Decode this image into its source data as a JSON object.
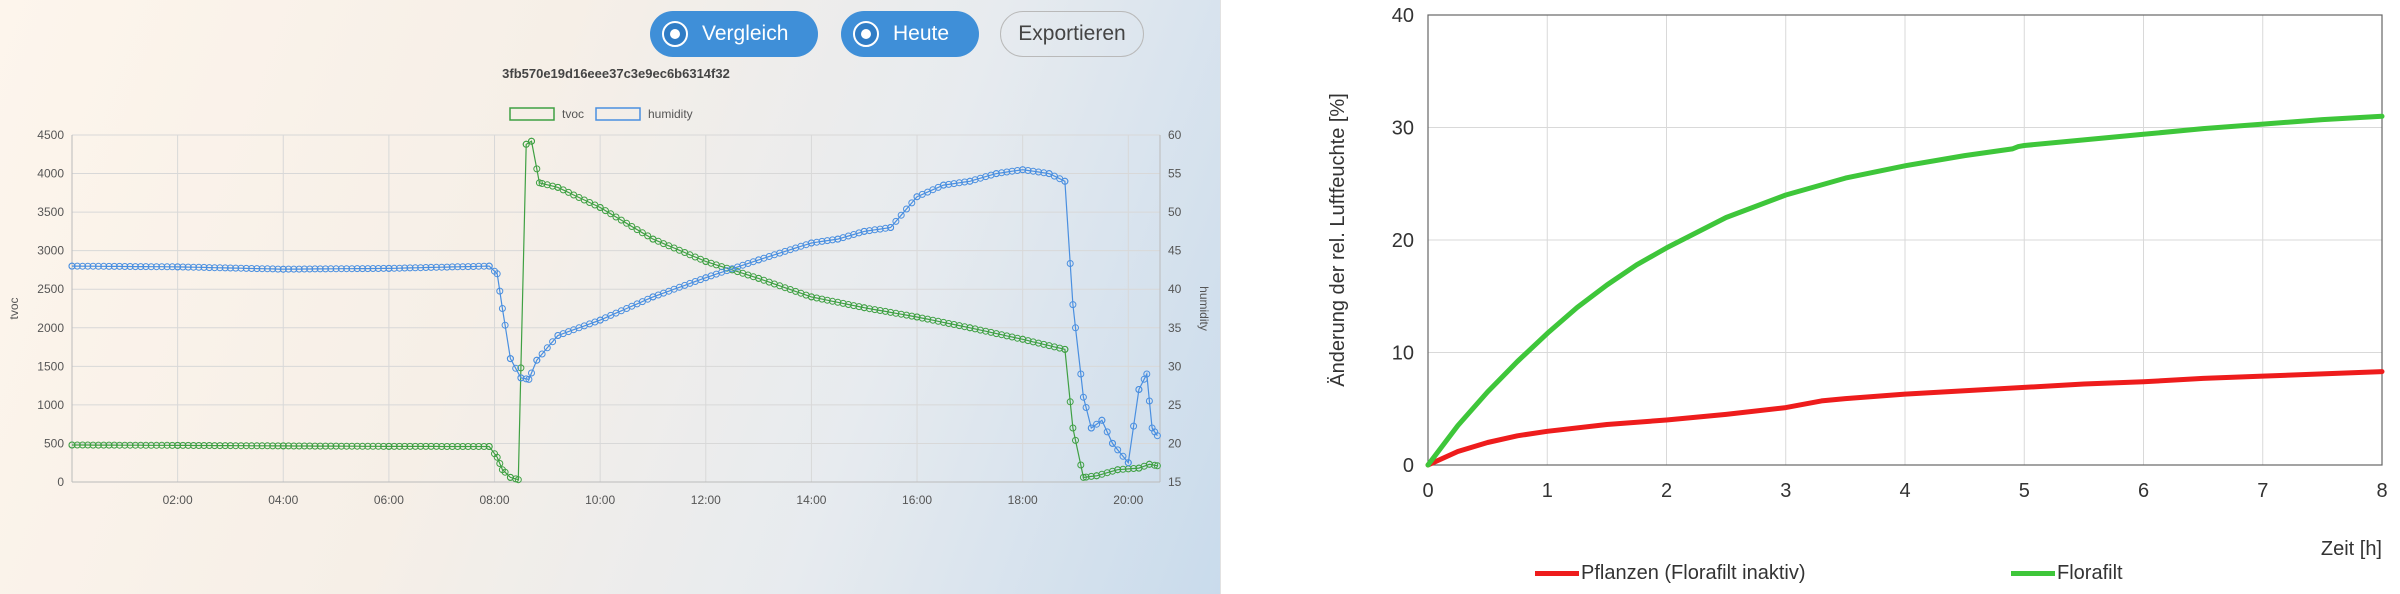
{
  "toolbar": {
    "compare_label": "Vergleich",
    "today_label": "Heute",
    "export_label": "Exportieren"
  },
  "colors": {
    "button_primary": "#3f8fd8",
    "tvoc": "#3fa043",
    "humidity": "#4a8fe0",
    "plants": "#ee1c1c",
    "florafilt": "#3ec63a"
  },
  "chart_data": [
    {
      "type": "line",
      "title": "3fb570e19d16eee37c3e9ec6b6314f32",
      "xlabel": "",
      "x_ticks": [
        "02:00",
        "04:00",
        "06:00",
        "08:00",
        "10:00",
        "12:00",
        "14:00",
        "16:00",
        "18:00",
        "20:00"
      ],
      "x_range_hours": [
        0,
        20.6
      ],
      "y_left": {
        "label": "tvoc",
        "range": [
          0,
          4500
        ],
        "ticks": [
          0,
          500,
          1000,
          1500,
          2000,
          2500,
          3000,
          3500,
          4000,
          4500
        ]
      },
      "y_right": {
        "label": "humidity",
        "range": [
          15,
          60
        ],
        "ticks": [
          15,
          20,
          25,
          30,
          35,
          40,
          45,
          50,
          55,
          60
        ]
      },
      "grid": true,
      "legend_position": "top-center",
      "series": [
        {
          "name": "tvoc",
          "axis": "left",
          "color": "#3fa043",
          "points": [
            [
              0,
              480
            ],
            [
              2,
              475
            ],
            [
              4,
              468
            ],
            [
              6,
              462
            ],
            [
              7.9,
              460
            ],
            [
              8.05,
              320
            ],
            [
              8.15,
              160
            ],
            [
              8.3,
              60
            ],
            [
              8.45,
              30
            ],
            [
              8.6,
              4380
            ],
            [
              8.7,
              4420
            ],
            [
              8.85,
              3880
            ],
            [
              9.2,
              3820
            ],
            [
              10,
              3560
            ],
            [
              11,
              3150
            ],
            [
              12,
              2860
            ],
            [
              13,
              2640
            ],
            [
              14,
              2400
            ],
            [
              15,
              2260
            ],
            [
              16,
              2140
            ],
            [
              17,
              2000
            ],
            [
              18,
              1850
            ],
            [
              18.8,
              1720
            ],
            [
              18.95,
              700
            ],
            [
              19.15,
              60
            ],
            [
              19.4,
              80
            ],
            [
              19.8,
              160
            ],
            [
              20.2,
              180
            ],
            [
              20.4,
              230
            ],
            [
              20.55,
              210
            ]
          ]
        },
        {
          "name": "humidity",
          "axis": "right",
          "color": "#4a8fe0",
          "points": [
            [
              0,
              43
            ],
            [
              2,
              42.9
            ],
            [
              4,
              42.6
            ],
            [
              6,
              42.7
            ],
            [
              7.9,
              43
            ],
            [
              8.05,
              42
            ],
            [
              8.15,
              37.5
            ],
            [
              8.3,
              31
            ],
            [
              8.5,
              28.5
            ],
            [
              8.65,
              28.3
            ],
            [
              8.8,
              30.8
            ],
            [
              9.2,
              34
            ],
            [
              10,
              36
            ],
            [
              11,
              39
            ],
            [
              12,
              41.5
            ],
            [
              13,
              43.8
            ],
            [
              14,
              46
            ],
            [
              14.5,
              46.5
            ],
            [
              15,
              47.5
            ],
            [
              15.5,
              48
            ],
            [
              16,
              52
            ],
            [
              16.5,
              53.5
            ],
            [
              17,
              54
            ],
            [
              17.5,
              55
            ],
            [
              18,
              55.5
            ],
            [
              18.5,
              55
            ],
            [
              18.8,
              54
            ],
            [
              18.95,
              38
            ],
            [
              19.15,
              26
            ],
            [
              19.3,
              22
            ],
            [
              19.5,
              23
            ],
            [
              19.7,
              20
            ],
            [
              20.0,
              17.5
            ],
            [
              20.2,
              27
            ],
            [
              20.35,
              29
            ],
            [
              20.45,
              22
            ],
            [
              20.55,
              21
            ]
          ]
        }
      ]
    },
    {
      "type": "line",
      "xlabel": "Zeit [h]",
      "ylabel": "Änderung der rel. Luftfeuchte [%]",
      "xlim": [
        0,
        8
      ],
      "ylim": [
        0,
        40
      ],
      "x_ticks": [
        0,
        1,
        2,
        3,
        4,
        5,
        6,
        7,
        8
      ],
      "y_ticks": [
        0,
        10,
        20,
        30,
        40
      ],
      "grid": true,
      "legend_position": "bottom",
      "series": [
        {
          "name": "Pflanzen (Florafilt inaktiv)",
          "color": "#ee1c1c",
          "x": [
            0,
            0.25,
            0.5,
            0.75,
            1,
            1.5,
            2,
            2.5,
            3,
            3.3,
            3.5,
            4,
            4.5,
            5,
            5.5,
            6,
            6.5,
            7,
            7.5,
            8
          ],
          "y": [
            0,
            1.2,
            2.0,
            2.6,
            3.0,
            3.6,
            4.0,
            4.5,
            5.1,
            5.7,
            5.9,
            6.3,
            6.6,
            6.9,
            7.2,
            7.4,
            7.7,
            7.9,
            8.1,
            8.3
          ]
        },
        {
          "name": "Florafilt",
          "color": "#3ec63a",
          "x": [
            0,
            0.25,
            0.5,
            0.75,
            1,
            1.25,
            1.5,
            1.75,
            2,
            2.5,
            3,
            3.5,
            4,
            4.5,
            4.9,
            4.95,
            5,
            5.5,
            6,
            6.5,
            7,
            7.5,
            8
          ],
          "y": [
            0,
            3.5,
            6.5,
            9.2,
            11.7,
            14.0,
            16.0,
            17.8,
            19.3,
            22.0,
            24.0,
            25.5,
            26.6,
            27.5,
            28.1,
            28.3,
            28.4,
            28.9,
            29.4,
            29.9,
            30.3,
            30.7,
            31.0
          ]
        }
      ]
    }
  ]
}
